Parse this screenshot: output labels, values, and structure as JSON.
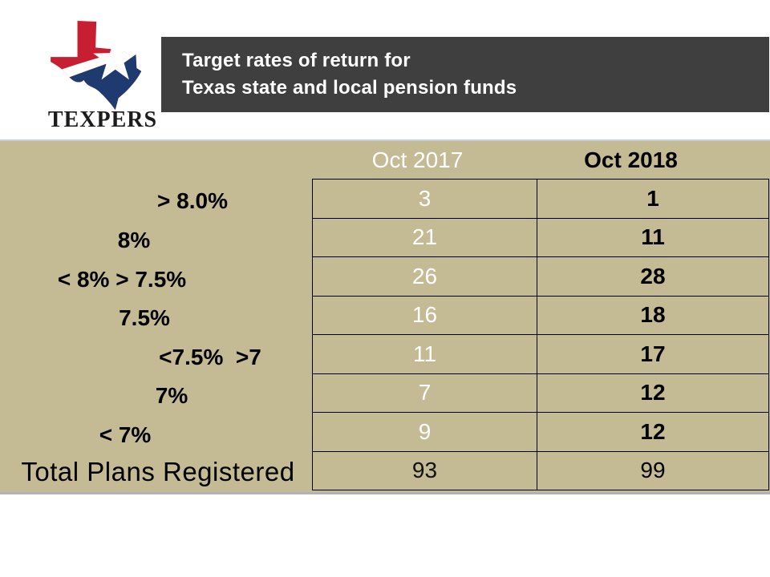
{
  "logo": {
    "org": "TEXPERS",
    "colors": {
      "red": "#c81e32",
      "blue": "#1e3a6e",
      "star": "#ffffff"
    }
  },
  "title": {
    "line1": "Target rates of return for",
    "line2": "Texas state and local pension funds"
  },
  "table": {
    "col_headers": [
      "Oct 2017",
      "Oct 2018"
    ],
    "rows": [
      {
        "label": "> 8.0%",
        "oct2017": "3",
        "oct2018": "1"
      },
      {
        "label": "8%",
        "oct2017": "21",
        "oct2018": "11"
      },
      {
        "label": "< 8% > 7.5%",
        "oct2017": "26",
        "oct2018": "28"
      },
      {
        "label": "7.5%",
        "oct2017": "16",
        "oct2018": "18"
      },
      {
        "label": "<7.5%  >7",
        "oct2017": "11",
        "oct2018": "17"
      },
      {
        "label": "7%",
        "oct2017": "7",
        "oct2018": "12"
      },
      {
        "label": "< 7%",
        "oct2017": "9",
        "oct2018": "12"
      },
      {
        "label": "Total Plans Registered",
        "oct2017": "93",
        "oct2018": "99"
      }
    ]
  },
  "colors": {
    "panel_tan": "#c4ba93",
    "title_bar": "#3f3f3f",
    "oct2017_text": "#ffffff",
    "oct2018_text": "#000000",
    "table_border": "#000000"
  }
}
